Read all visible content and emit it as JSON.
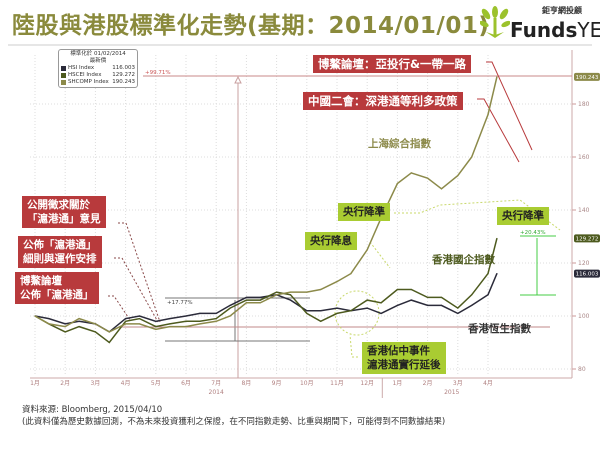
{
  "title": "陸股與港股標準化走勢(基期：2014/01/01)",
  "logo": {
    "cn": "鉅亨網投顧",
    "brand_bold": "Funds",
    "brand_light": "YES"
  },
  "legend": {
    "header1": "標準化於 01/02/2014",
    "header2": "最新價",
    "items": [
      {
        "name": "HSI Index",
        "value": "116.003",
        "color": "#2b2b3a"
      },
      {
        "name": "HSCEI Index",
        "value": "129.272",
        "color": "#4d5a1e"
      },
      {
        "name": "SHCOMP Index",
        "value": "190.243",
        "color": "#8c8a4a"
      }
    ]
  },
  "annotations": {
    "boao_aiib": "博鰲論壇：亞投行&一帶一路",
    "two_sessions": "中國二會：深港通等利多政策",
    "sh_label": "上海綜合指數",
    "rrr_cut_1": "央行降準",
    "rate_cut": "央行降息",
    "rrr_cut_2": "央行降準",
    "hscei_label": "香港國企指數",
    "hsi_label": "香港恆生指數",
    "occupy_1": "香港佔中事件",
    "occupy_2": "滬港通實行延後",
    "consult_1": "公開徵求關於",
    "consult_2": "「滬港通」意見",
    "rules_1": "公佈「滬港通」",
    "rules_2": "細則與運作安排",
    "boao_1": "博鰲論壇",
    "boao_2": "公佈「滬港通」",
    "pct_sh": "+99.71%",
    "pct_hsi": "+17.77%",
    "pct_hscei": "+20.43%"
  },
  "footer": {
    "source": "資料來源: Bloomberg, 2015/04/10",
    "disclaimer": "(此資料僅為歷史數據回測，不為未來投資獲利之保證，在不同指數走勢、比重與期間下，可能得到不同數據結果)"
  },
  "chart_data": {
    "type": "line",
    "title": "陸股與港股標準化走勢(基期：2014/01/01)",
    "ylim": [
      78,
      196
    ],
    "yticks": [
      80,
      100,
      120,
      140,
      160,
      180
    ],
    "xticks": [
      "1月",
      "2月",
      "3月",
      "4月",
      "5月",
      "6月",
      "7月",
      "8月",
      "9月",
      "10月",
      "11月",
      "12月",
      "1月",
      "2月",
      "3月",
      "4月"
    ],
    "year_labels": [
      "2014",
      "2015"
    ],
    "grid": true,
    "x": [
      "2014-01-01",
      "2014-01-15",
      "2014-02-01",
      "2014-02-15",
      "2014-03-01",
      "2014-03-15",
      "2014-04-01",
      "2014-04-15",
      "2014-05-01",
      "2014-05-15",
      "2014-06-01",
      "2014-06-15",
      "2014-07-01",
      "2014-07-15",
      "2014-08-01",
      "2014-08-15",
      "2014-09-01",
      "2014-09-15",
      "2014-10-01",
      "2014-10-15",
      "2014-11-01",
      "2014-11-15",
      "2014-12-01",
      "2014-12-15",
      "2015-01-01",
      "2015-01-15",
      "2015-02-01",
      "2015-02-15",
      "2015-03-01",
      "2015-03-15",
      "2015-04-01",
      "2015-04-10"
    ],
    "series": [
      {
        "name": "HSI Index",
        "color": "#2b2b3a",
        "values": [
          100,
          99,
          97,
          98,
          97,
          94,
          99,
          100,
          98,
          99,
          100,
          101,
          101,
          104,
          107,
          107,
          108,
          106,
          102,
          102,
          103,
          102,
          103,
          101,
          104,
          106,
          104,
          104,
          101,
          104,
          108,
          116.003
        ]
      },
      {
        "name": "HSCEI Index",
        "color": "#4d5a1e",
        "values": [
          100,
          97,
          94,
          96,
          94,
          90,
          98,
          99,
          96,
          97,
          98,
          98,
          99,
          103,
          106,
          106,
          109,
          108,
          101,
          98,
          101,
          102,
          106,
          105,
          110,
          110,
          107,
          107,
          103,
          108,
          116,
          129.272
        ]
      },
      {
        "name": "SHCOMP Index",
        "color": "#8c8a4a",
        "values": [
          100,
          97,
          96,
          99,
          97,
          94,
          97,
          97,
          95,
          96,
          96,
          97,
          98,
          100,
          105,
          105,
          108,
          109,
          109,
          110,
          113,
          116,
          125,
          137,
          150,
          154,
          152,
          148,
          153,
          160,
          176,
          190.243
        ]
      }
    ],
    "last_value_labels": [
      "190.243",
      "129.272",
      "116.003"
    ]
  }
}
